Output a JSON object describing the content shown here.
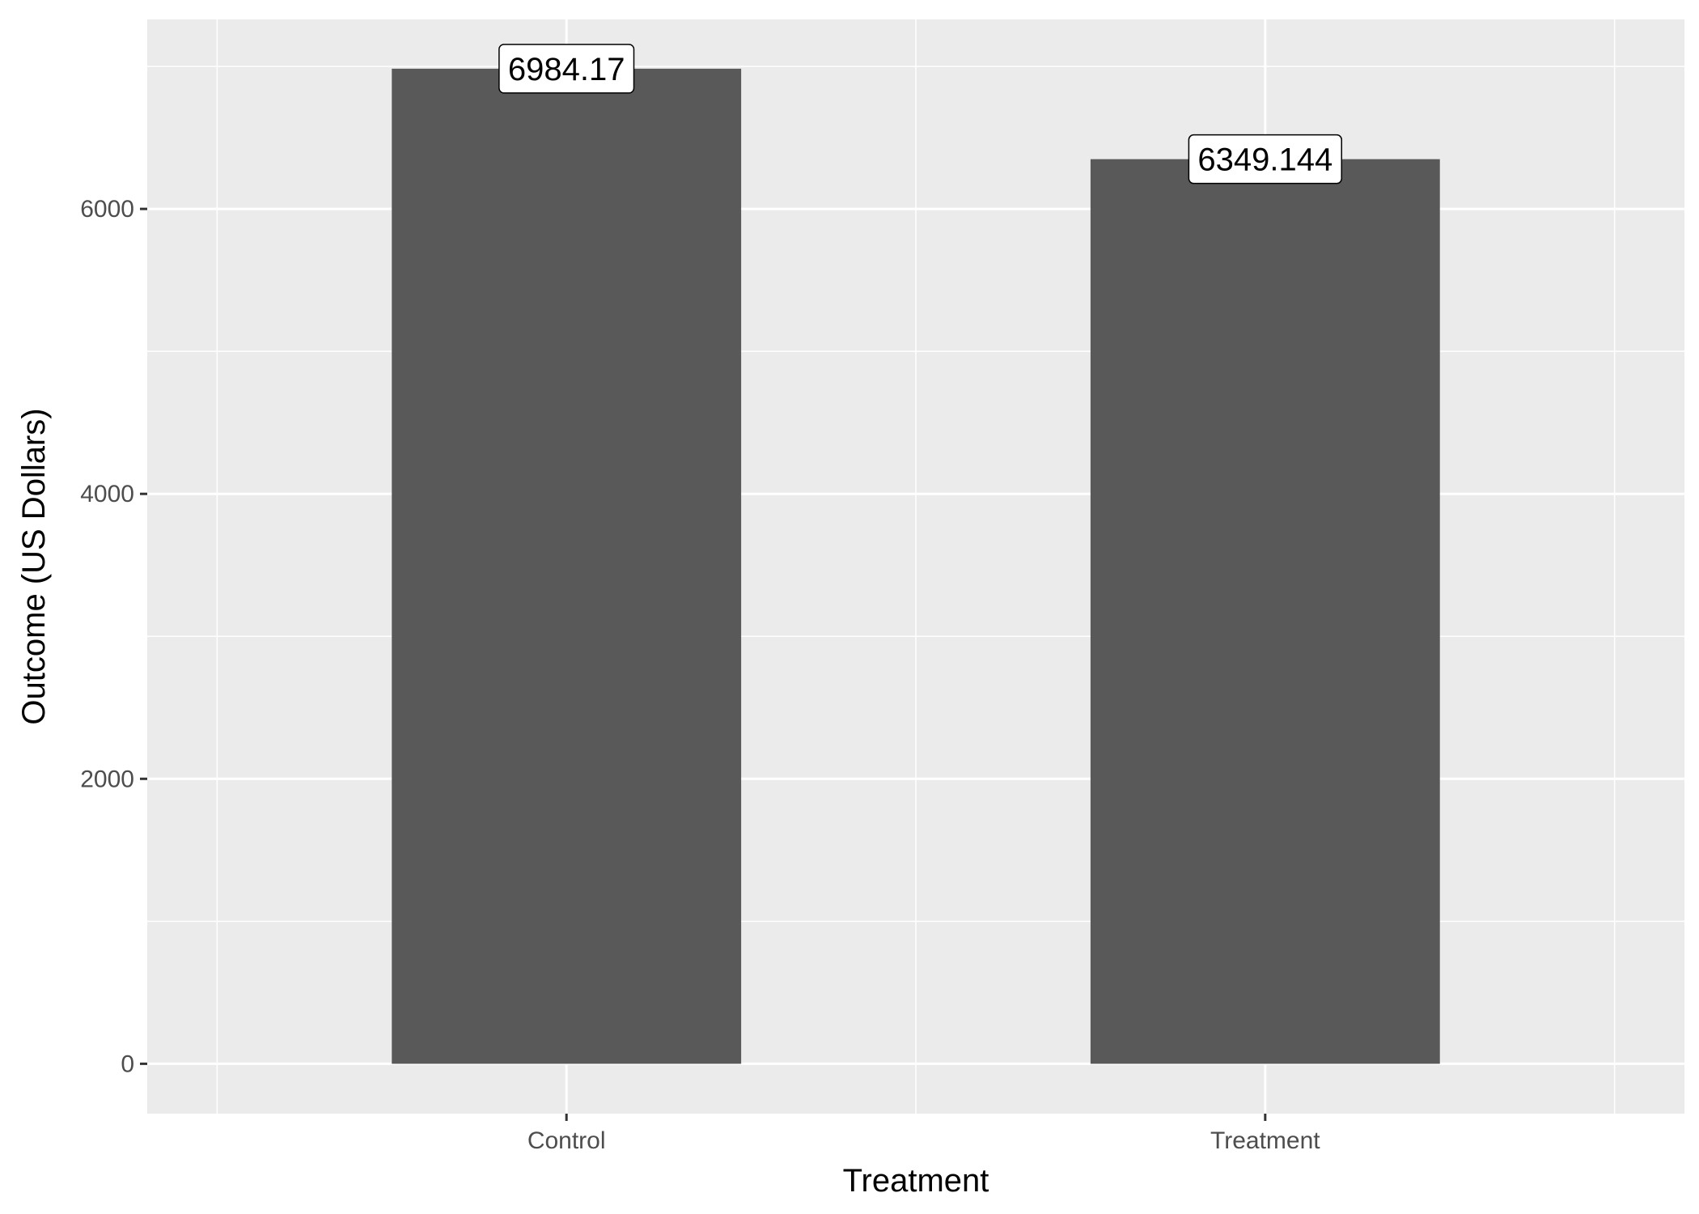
{
  "chart_data": {
    "type": "bar",
    "categories": [
      "Control",
      "Treatment"
    ],
    "values": [
      6984.17,
      6349.144
    ],
    "data_labels": [
      "6984.17",
      "6349.144"
    ],
    "title": "",
    "xlabel": "Treatment",
    "ylabel": "Outcome (US Dollars)",
    "ylim": [
      -350,
      7330
    ],
    "yticks": [
      0,
      2000,
      4000,
      6000
    ],
    "ytick_labels": [
      "0",
      "2000",
      "4000",
      "6000"
    ],
    "grid": true,
    "legend": "none"
  },
  "colors": {
    "panel_background": "#ebebeb",
    "grid_line": "#ffffff",
    "bar_fill": "#595959",
    "tick_mark": "#333333",
    "tick_label": "#4d4d4d",
    "label_box": "#ffffff"
  }
}
